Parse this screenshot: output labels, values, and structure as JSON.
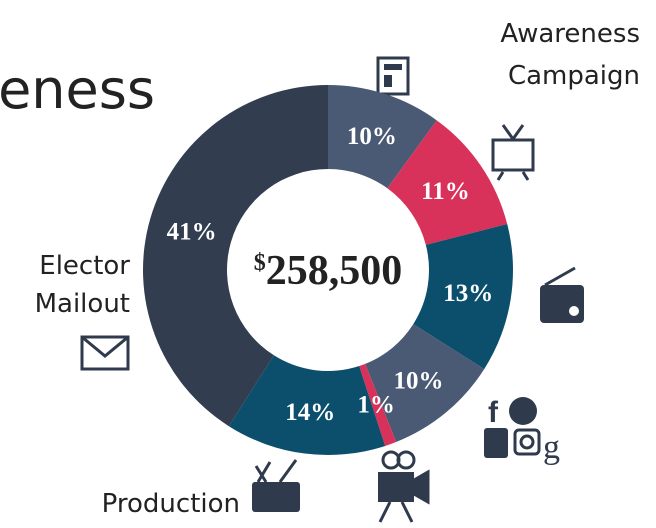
{
  "chart_data": {
    "type": "donut",
    "title": "eness",
    "categories": [
      null,
      null,
      null,
      null,
      null,
      null,
      null
    ],
    "values": [
      10,
      11,
      13,
      10,
      1,
      14,
      41
    ],
    "value_labels": [
      "10%",
      "11%",
      "13%",
      "10%",
      "1%",
      "14%",
      "41%"
    ],
    "colors": [
      "#4b5a74",
      "#d8325b",
      "#0c4f6d",
      "#4b5a74",
      "#d8325b",
      "#0c4f6d",
      "#333d50"
    ],
    "center_currency": "$",
    "center_value": "258,500",
    "annotations": [
      "Awareness",
      "Campaign",
      "Elector",
      "Mailout",
      "Production"
    ]
  }
}
